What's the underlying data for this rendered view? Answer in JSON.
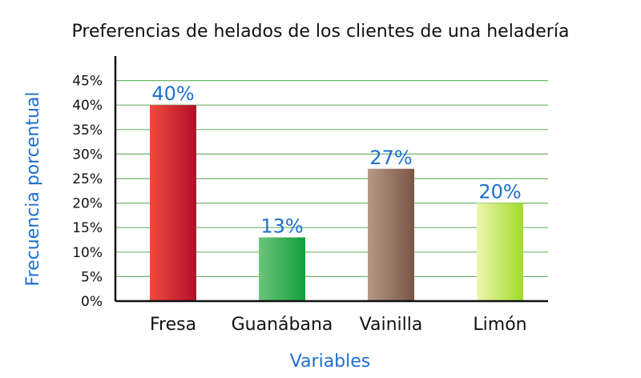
{
  "chart_data": {
    "type": "bar",
    "title": "Preferencias de helados de los clientes de una heladería",
    "xlabel": "Variables",
    "ylabel": "Frecuencia porcentual",
    "categories": [
      "Fresa",
      "Guanábana",
      "Vainilla",
      "Limón"
    ],
    "values": [
      40,
      13,
      27,
      20
    ],
    "value_labels": [
      "40%",
      "13%",
      "27%",
      "20%"
    ],
    "ylim": [
      0,
      45
    ],
    "yticks": [
      0,
      5,
      10,
      15,
      20,
      25,
      30,
      35,
      40,
      45
    ],
    "ytick_labels": [
      "0%",
      "5%",
      "10%",
      "15%",
      "20%",
      "25%",
      "30%",
      "35%",
      "40%",
      "45%"
    ],
    "grid": true,
    "legend": "none",
    "colors": {
      "bars": [
        {
          "light": "#f04a3c",
          "dark": "#b0102a"
        },
        {
          "light": "#6cc47a",
          "dark": "#119e3a"
        },
        {
          "light": "#b49a86",
          "dark": "#7a5545"
        },
        {
          "light": "#eef5b0",
          "dark": "#a0dc28"
        }
      ],
      "grid": "#6fb56f",
      "axis_text": "#1f6fd0"
    }
  }
}
